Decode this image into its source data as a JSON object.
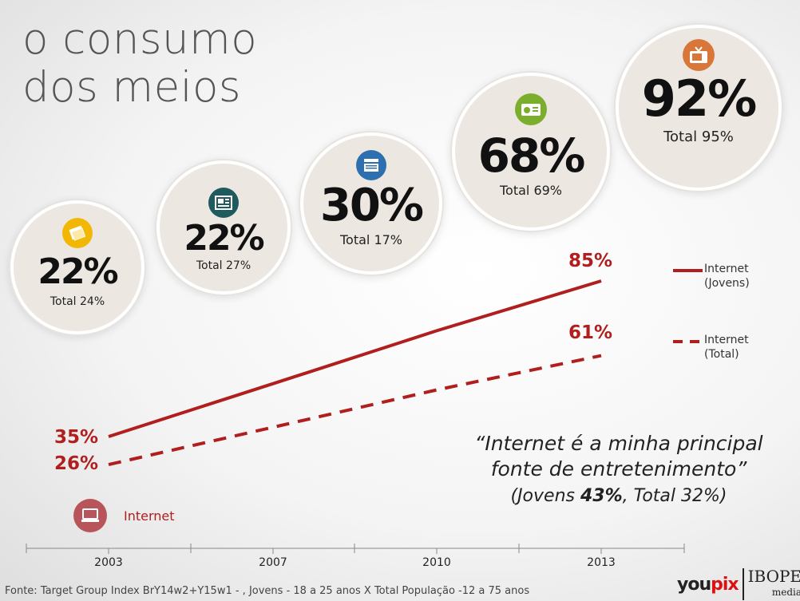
{
  "title": {
    "line1": "o consumo",
    "line2": "dos meios"
  },
  "media": [
    {
      "name": "revista",
      "icon": "magazine-icon",
      "icon_color": "#f2b705",
      "young": "22%",
      "total": "Total 24%"
    },
    {
      "name": "jornal",
      "icon": "newspaper-icon",
      "icon_color": "#1f5a5e",
      "young": "22%",
      "total": "Total 27%"
    },
    {
      "name": "cinema",
      "icon": "clapperboard-icon",
      "icon_color": "#2e6fb0",
      "young": "30%",
      "total": "Total 17%"
    },
    {
      "name": "radio",
      "icon": "radio-icon",
      "icon_color": "#7cae2e",
      "young": "68%",
      "total": "Total 69%"
    },
    {
      "name": "tv",
      "icon": "tv-icon",
      "icon_color": "#d9763a",
      "young": "92%",
      "total": "Total 95%"
    }
  ],
  "chart_data": {
    "type": "line",
    "categories": [
      "2003",
      "2007",
      "2010",
      "2013"
    ],
    "series": [
      {
        "name": "Internet (Jovens)",
        "style": "solid",
        "color": "#b01e1e",
        "values": [
          35,
          52,
          69,
          85
        ],
        "start_label": "35%",
        "end_label": "85%"
      },
      {
        "name": "Internet (Total)",
        "style": "dashed",
        "color": "#b01e1e",
        "values": [
          26,
          38,
          50,
          61
        ],
        "start_label": "26%",
        "end_label": "61%"
      }
    ],
    "ylim": [
      0,
      100
    ]
  },
  "legend": {
    "jovens_line1": "Internet",
    "jovens_line2": "(Jovens)",
    "total_line1": "Internet",
    "total_line2": "(Total)"
  },
  "internet_label": "Internet",
  "quote": {
    "line1": "“Internet é a minha principal",
    "line2": "fonte de entretenimento”",
    "sub_pre": "(Jovens ",
    "sub_bold": "43%",
    "sub_post": ", Total 32%)"
  },
  "footer": "Fonte: Target Group Index BrY14w2+Y15w1 - , Jovens  - 18 a 25 anos X Total População -12 a 75 anos",
  "brand": {
    "youpix_a": "you",
    "youpix_b": "pix",
    "ibope": "IBOPE",
    "media": "media"
  }
}
